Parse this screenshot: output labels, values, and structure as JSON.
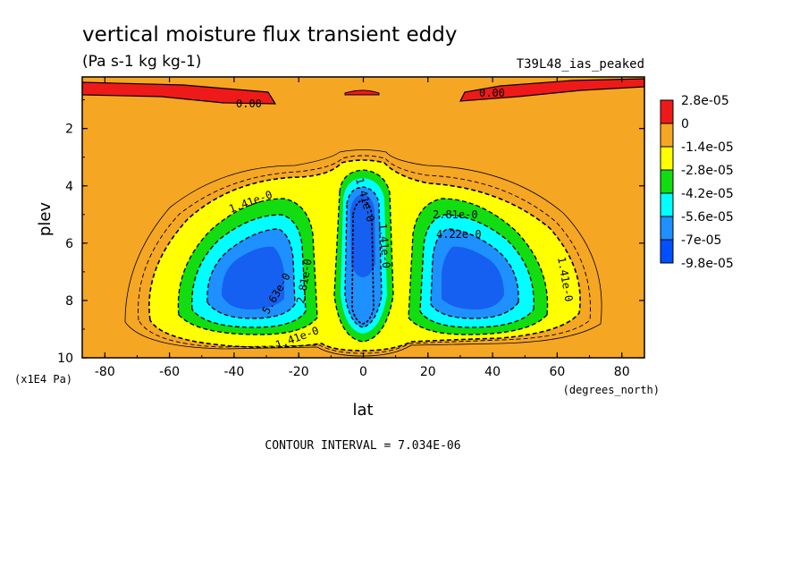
{
  "chart_data": {
    "type": "contour",
    "title": "vertical moisture flux transient eddy",
    "units": "(Pa s-1 kg kg-1)",
    "run_label": "T39L48_ias_peaked",
    "xlabel": "lat",
    "xunits": "(degrees_north)",
    "ylabel": "plev",
    "yunits": "(x1E4 Pa)",
    "xlim": [
      -87,
      87
    ],
    "ylim": [
      10,
      0.2
    ],
    "xticks": [
      "-80",
      "-60",
      "-40",
      "-20",
      "0",
      "20",
      "40",
      "60",
      "80"
    ],
    "yticks": [
      "2",
      "4",
      "6",
      "8",
      "10"
    ],
    "contour_interval_text": "CONTOUR INTERVAL = 7.034E-06",
    "contour_labels": [
      "0.00",
      "0.00",
      "1.41e-0",
      "1.41e-0",
      "1.41e-0",
      "2.81e-0",
      "5.63e-0",
      "2.81e-0",
      "4.22e-0",
      "1.41e-0",
      "1.41e-0"
    ],
    "legend": {
      "labels": [
        "2.8e-05",
        "0",
        "-1.4e-05",
        "-2.8e-05",
        "-4.2e-05",
        "-5.6e-05",
        "-7e-05",
        "-9.8e-05"
      ],
      "colors": [
        "#ee1a1a",
        "#f5a623",
        "#ffff00",
        "#11dd11",
        "#00ffff",
        "#1e90ff",
        "#0050ff"
      ]
    },
    "palette": {
      "positive": "#ee1a1a",
      "background": "#f5a623",
      "level1": "#ffff00",
      "level2": "#11dd11",
      "level3": "#00ffff",
      "level4": "#1e90ff",
      "level5": "#1560f0"
    },
    "structures": [
      {
        "name": "southern-eddy-minimum",
        "lat_center": -35,
        "plev_center": 7.5
      },
      {
        "name": "equatorial-minimum",
        "lat_center": 0,
        "plev_center": 5.5
      },
      {
        "name": "northern-eddy-minimum",
        "lat_center": 35,
        "plev_center": 7.5
      },
      {
        "name": "upper-positive-south",
        "lat_range": [
          -87,
          -30
        ],
        "plev_range": [
          0.2,
          0.9
        ]
      },
      {
        "name": "upper-positive-north",
        "lat_range": [
          30,
          87
        ],
        "plev_range": [
          0.2,
          0.9
        ]
      }
    ]
  }
}
